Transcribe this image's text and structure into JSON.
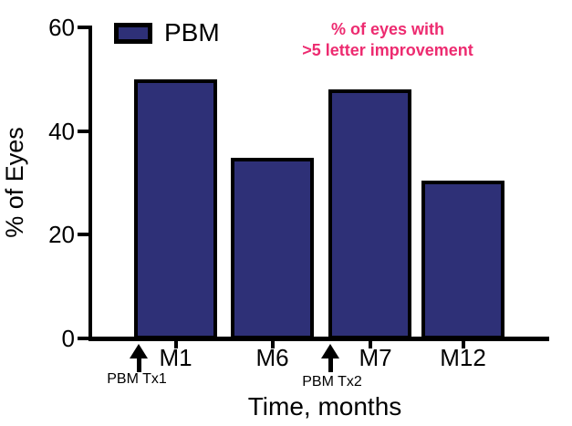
{
  "chart_data": {
    "type": "bar",
    "categories": [
      "M1",
      "M6",
      "M7",
      "M12"
    ],
    "series": [
      {
        "name": "PBM",
        "values": [
          50,
          34.8,
          48,
          30.4
        ]
      }
    ],
    "xlabel": "Time, months",
    "ylabel": "% of Eyes",
    "ylim": [
      0,
      60
    ],
    "yticks": [
      0,
      20,
      40,
      60
    ],
    "grid": false,
    "legend": {
      "label": "PBM",
      "position": "top-left"
    },
    "annotation": {
      "lines": [
        "% of eyes with",
        ">5 letter improvement"
      ],
      "position": "top-right"
    },
    "treatments": [
      {
        "label": "PBM Tx1",
        "position": "left-of-M1"
      },
      {
        "label": "PBM Tx2",
        "position": "left-of-M7"
      }
    ],
    "colors": {
      "bar_fill": "#2E3077",
      "bar_border": "#000000",
      "axis": "#000000",
      "annotation": "#ED2B70"
    }
  }
}
